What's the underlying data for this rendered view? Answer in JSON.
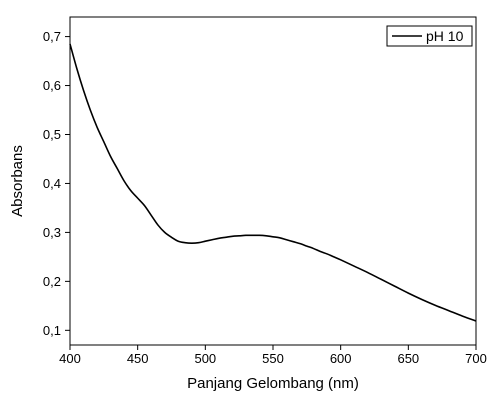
{
  "chart_data": {
    "type": "line",
    "title": "",
    "xlabel": "Panjang Gelombang (nm)",
    "ylabel": "Absorbans",
    "xlim": [
      400,
      700
    ],
    "ylim": [
      0.07,
      0.74
    ],
    "xticks": [
      {
        "value": 400,
        "label": "400"
      },
      {
        "value": 450,
        "label": "450"
      },
      {
        "value": 500,
        "label": "500"
      },
      {
        "value": 550,
        "label": "550"
      },
      {
        "value": 600,
        "label": "600"
      },
      {
        "value": 650,
        "label": "650"
      },
      {
        "value": 700,
        "label": "700"
      }
    ],
    "yticks": [
      {
        "value": 0.1,
        "label": "0,1"
      },
      {
        "value": 0.2,
        "label": "0,2"
      },
      {
        "value": 0.3,
        "label": "0,3"
      },
      {
        "value": 0.4,
        "label": "0,4"
      },
      {
        "value": 0.5,
        "label": "0,5"
      },
      {
        "value": 0.6,
        "label": "0,6"
      },
      {
        "value": 0.7,
        "label": "0,7"
      }
    ],
    "grid": false,
    "legend_position": "top-right",
    "series": [
      {
        "name": "pH 10",
        "color": "#000000",
        "x": [
          400,
          405,
          410,
          415,
          420,
          425,
          430,
          435,
          440,
          445,
          450,
          455,
          460,
          465,
          470,
          475,
          480,
          485,
          490,
          495,
          500,
          505,
          510,
          515,
          520,
          525,
          530,
          535,
          540,
          545,
          550,
          555,
          560,
          565,
          570,
          575,
          580,
          585,
          590,
          595,
          600,
          610,
          620,
          630,
          640,
          650,
          660,
          670,
          680,
          690,
          700
        ],
        "y": [
          0.685,
          0.635,
          0.59,
          0.55,
          0.515,
          0.485,
          0.455,
          0.43,
          0.405,
          0.385,
          0.37,
          0.355,
          0.335,
          0.315,
          0.3,
          0.29,
          0.282,
          0.279,
          0.278,
          0.279,
          0.282,
          0.285,
          0.288,
          0.29,
          0.292,
          0.293,
          0.294,
          0.294,
          0.294,
          0.293,
          0.291,
          0.289,
          0.285,
          0.281,
          0.277,
          0.272,
          0.267,
          0.261,
          0.256,
          0.25,
          0.244,
          0.231,
          0.218,
          0.204,
          0.19,
          0.176,
          0.163,
          0.151,
          0.14,
          0.129,
          0.119
        ]
      }
    ]
  }
}
